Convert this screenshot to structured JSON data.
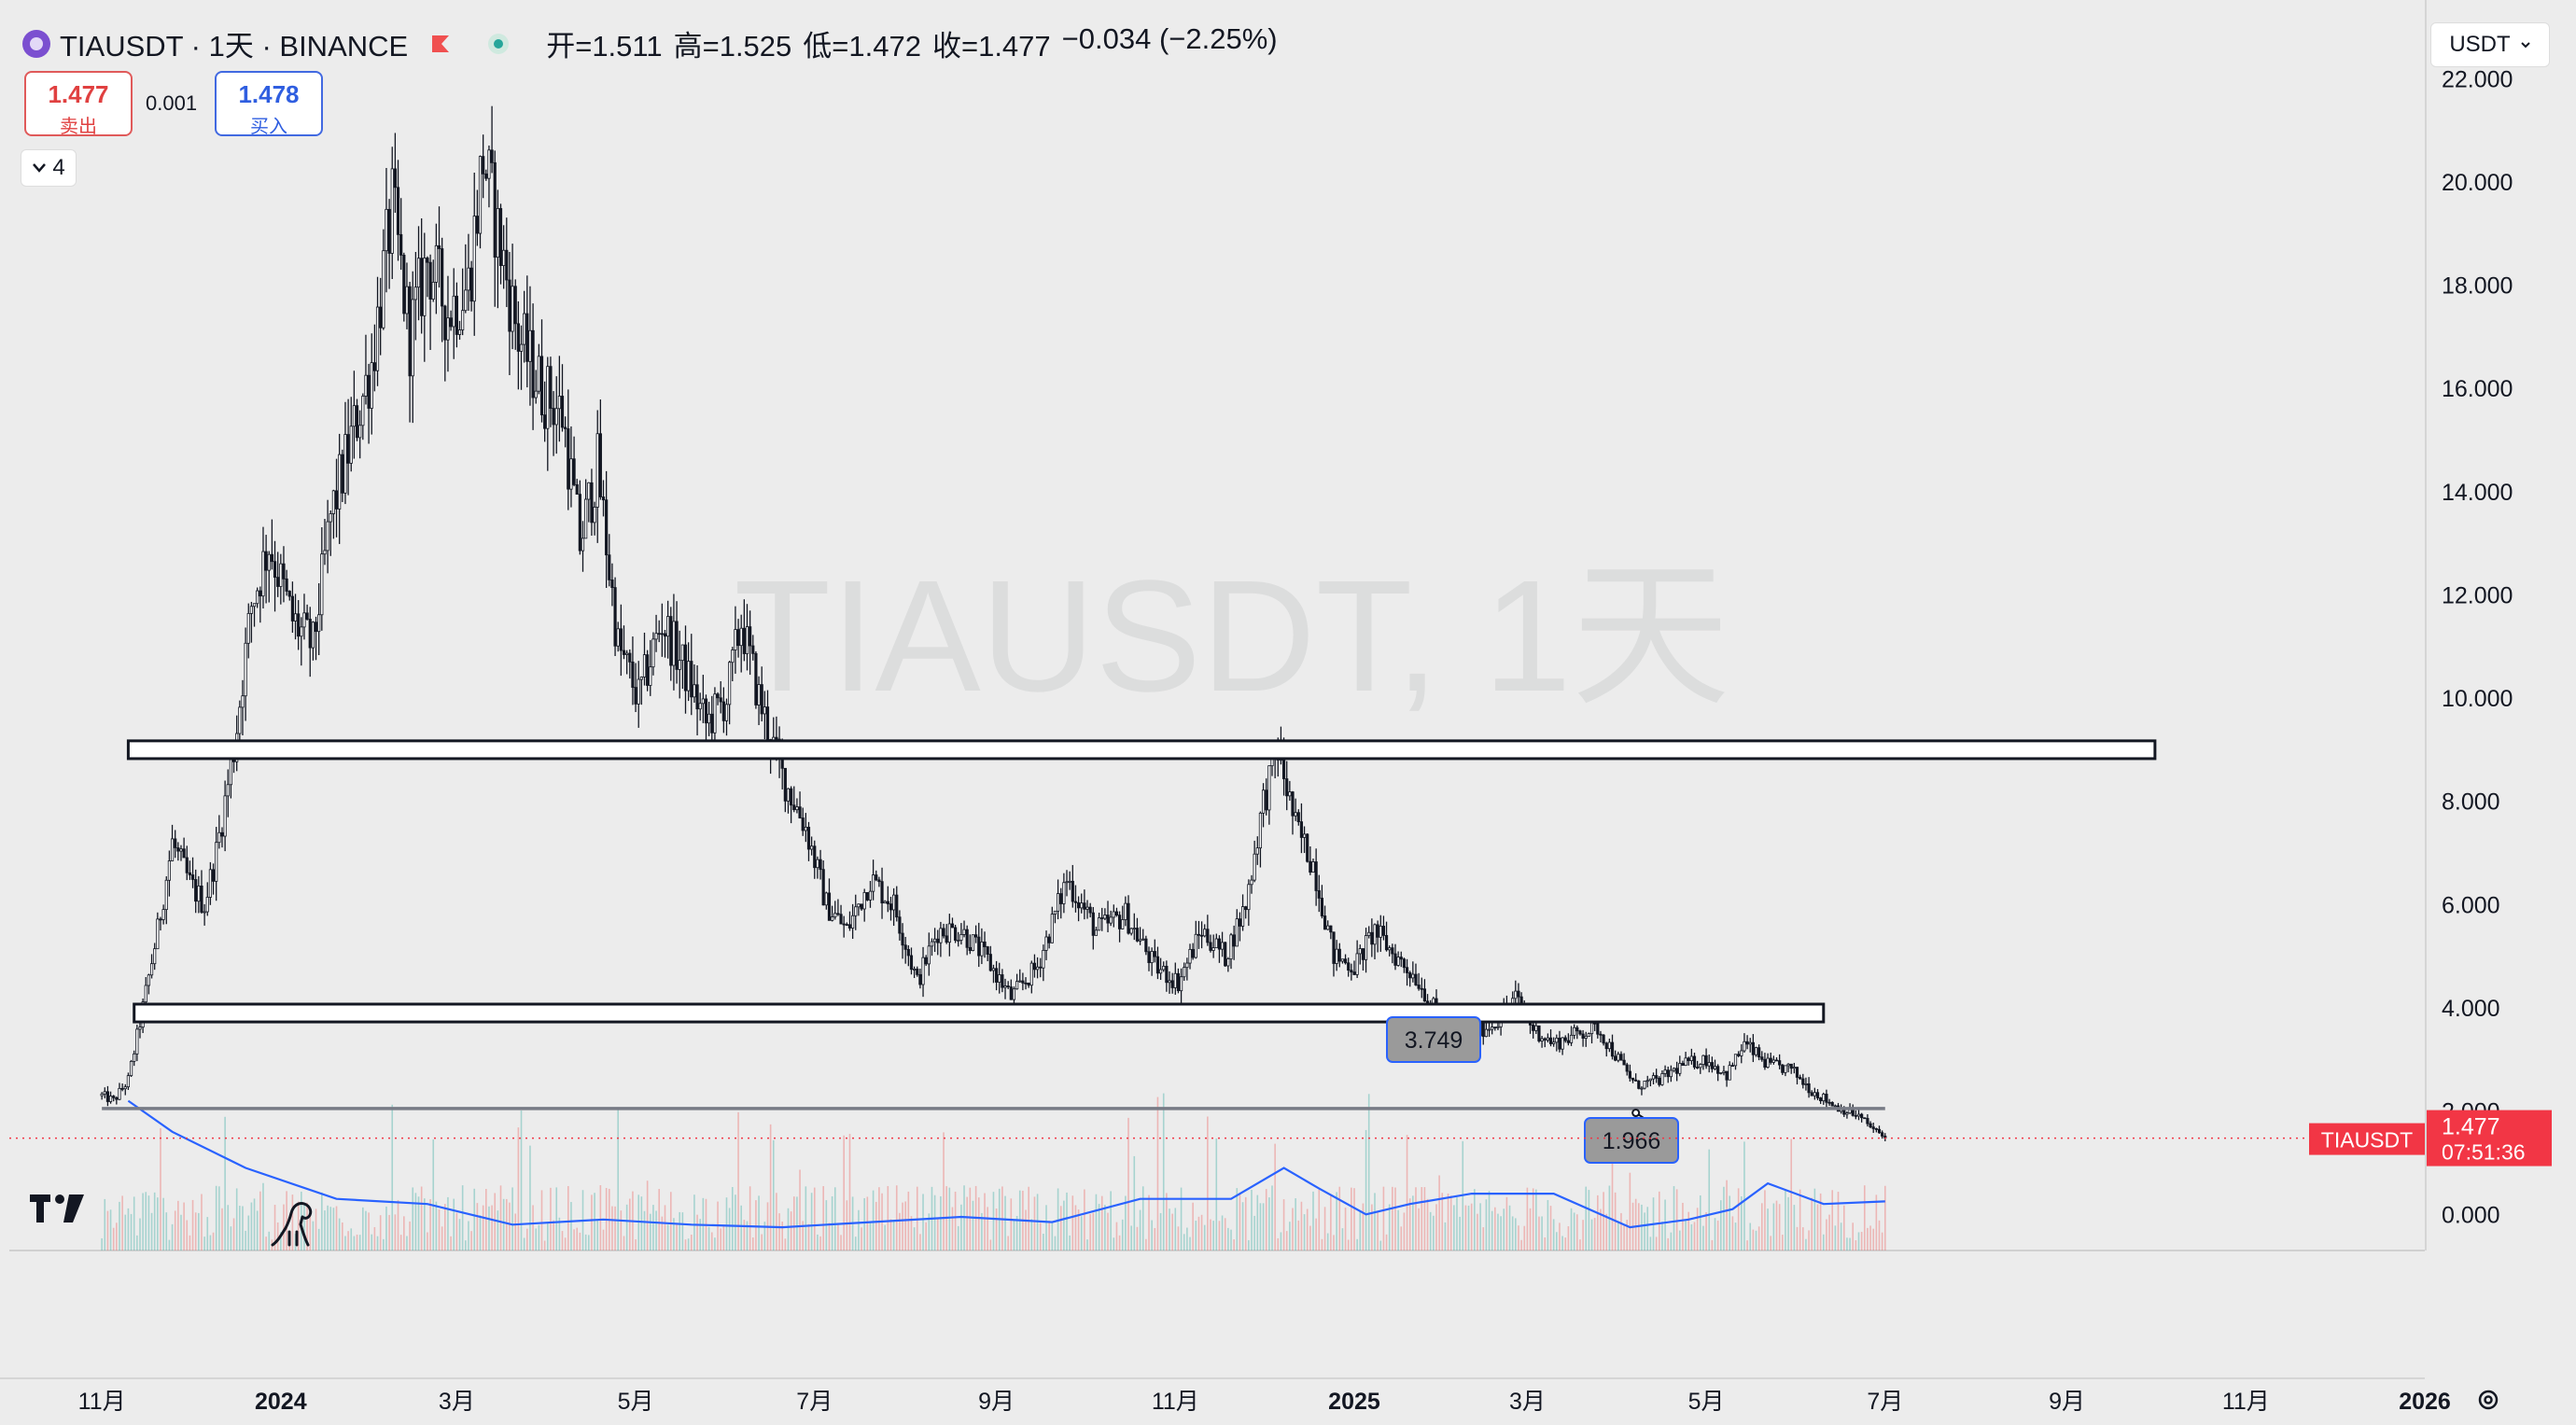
{
  "header": {
    "symbol": "TIAUSDT · 1天 · BINANCE",
    "open_label": "开=",
    "open_value": "1.511",
    "high_label": "高=",
    "high_value": "1.525",
    "low_label": "低=",
    "low_value": "1.472",
    "close_label": "收=",
    "close_value": "1.477",
    "change": "−0.034 (−2.25%)",
    "sell_price": "1.477",
    "sell_label": "卖出",
    "spread": "0.001",
    "buy_price": "1.478",
    "buy_label": "买入",
    "indicator_count": "4"
  },
  "currency": "USDT",
  "watermark": "TIAUSDT, 1天",
  "last_price_tag": {
    "symbol": "TIAUSDT",
    "price": "1.477",
    "countdown": "07:51:36"
  },
  "colors": {
    "last_price": "#f23645",
    "volume_ma": "#2962ff",
    "candles": "#131722",
    "accent_sell": "#e04040",
    "accent_buy": "#2f5ee0"
  },
  "icons": [
    "symbol-logo-icon",
    "flag-icon",
    "market-status-icon",
    "chevron-down-icon",
    "tradingview-logo-icon",
    "dino-icon",
    "settings-icon"
  ],
  "chart_data": {
    "type": "candlestick",
    "y_ticks": [
      "22.000",
      "20.000",
      "18.000",
      "16.000",
      "14.000",
      "12.000",
      "10.000",
      "8.000",
      "6.000",
      "4.000",
      "2.000",
      "0.000"
    ],
    "x_ticks": [
      "11月",
      "2024",
      "3月",
      "5月",
      "7月",
      "9月",
      "11月",
      "2025",
      "3月",
      "5月",
      "7月",
      "9月",
      "11月",
      "2026"
    ],
    "ylim": [
      -0.7,
      22.8
    ],
    "x_range": [
      "2023-10-10",
      "2026-01-01"
    ],
    "horizontal_levels": [
      {
        "start": "2023-11-10",
        "end": "2025-10-01",
        "low": 8.9,
        "high": 9.1
      },
      {
        "start": "2023-11-12",
        "end": "2025-06-10",
        "low": 3.8,
        "high": 4.0
      },
      {
        "start": "2023-11-01",
        "end": "2025-07-01",
        "value": 2.05
      }
    ],
    "annotations": [
      {
        "text": "3.749",
        "date": "2025-01-28",
        "price": 3.75
      },
      {
        "text": "1.966",
        "date": "2025-04-07",
        "price": 1.966
      }
    ],
    "price_path": [
      [
        "2023-11-01",
        2.3
      ],
      [
        "2023-11-05",
        2.2
      ],
      [
        "2023-11-10",
        2.6
      ],
      [
        "2023-11-15",
        4.0
      ],
      [
        "2023-11-20",
        5.5
      ],
      [
        "2023-11-25",
        7.2
      ],
      [
        "2023-12-01",
        6.4
      ],
      [
        "2023-12-06",
        6.0
      ],
      [
        "2023-12-10",
        7.0
      ],
      [
        "2023-12-16",
        9.0
      ],
      [
        "2023-12-22",
        11.8
      ],
      [
        "2023-12-28",
        13.0
      ],
      [
        "2024-01-05",
        11.5
      ],
      [
        "2024-01-12",
        11.0
      ],
      [
        "2024-01-18",
        13.5
      ],
      [
        "2024-01-25",
        15.0
      ],
      [
        "2024-02-01",
        16.5
      ],
      [
        "2024-02-08",
        19.5
      ],
      [
        "2024-02-14",
        17.0
      ],
      [
        "2024-02-20",
        18.5
      ],
      [
        "2024-02-27",
        17.5
      ],
      [
        "2024-03-05",
        18.0
      ],
      [
        "2024-03-10",
        20.5
      ],
      [
        "2024-03-15",
        19.0
      ],
      [
        "2024-03-22",
        17.0
      ],
      [
        "2024-03-30",
        16.0
      ],
      [
        "2024-04-06",
        15.5
      ],
      [
        "2024-04-12",
        13.0
      ],
      [
        "2024-04-18",
        14.5
      ],
      [
        "2024-04-25",
        11.0
      ],
      [
        "2024-05-02",
        10.0
      ],
      [
        "2024-05-10",
        11.5
      ],
      [
        "2024-05-18",
        10.5
      ],
      [
        "2024-05-25",
        9.5
      ],
      [
        "2024-06-01",
        10.0
      ],
      [
        "2024-06-06",
        11.5
      ],
      [
        "2024-06-12",
        10.0
      ],
      [
        "2024-06-20",
        8.5
      ],
      [
        "2024-06-28",
        7.5
      ],
      [
        "2024-07-05",
        6.0
      ],
      [
        "2024-07-12",
        5.5
      ],
      [
        "2024-07-20",
        6.5
      ],
      [
        "2024-07-28",
        6.0
      ],
      [
        "2024-08-05",
        4.5
      ],
      [
        "2024-08-12",
        5.5
      ],
      [
        "2024-08-20",
        5.5
      ],
      [
        "2024-08-28",
        5.0
      ],
      [
        "2024-09-06",
        4.2
      ],
      [
        "2024-09-15",
        4.8
      ],
      [
        "2024-09-25",
        6.5
      ],
      [
        "2024-10-05",
        5.5
      ],
      [
        "2024-10-15",
        5.8
      ],
      [
        "2024-10-25",
        4.8
      ],
      [
        "2024-11-02",
        4.5
      ],
      [
        "2024-11-10",
        5.5
      ],
      [
        "2024-11-18",
        5.0
      ],
      [
        "2024-11-25",
        6.0
      ],
      [
        "2024-12-01",
        8.0
      ],
      [
        "2024-12-06",
        9.0
      ],
      [
        "2024-12-12",
        7.5
      ],
      [
        "2024-12-18",
        6.8
      ],
      [
        "2024-12-25",
        5.0
      ],
      [
        "2025-01-01",
        4.8
      ],
      [
        "2025-01-08",
        5.5
      ],
      [
        "2025-01-15",
        5.0
      ],
      [
        "2025-01-22",
        4.6
      ],
      [
        "2025-01-28",
        4.0
      ],
      [
        "2025-02-03",
        3.2
      ],
      [
        "2025-02-10",
        3.5
      ],
      [
        "2025-02-18",
        3.7
      ],
      [
        "2025-02-25",
        4.2
      ],
      [
        "2025-03-03",
        3.6
      ],
      [
        "2025-03-10",
        3.3
      ],
      [
        "2025-03-18",
        3.5
      ],
      [
        "2025-03-25",
        3.6
      ],
      [
        "2025-04-01",
        3.0
      ],
      [
        "2025-04-07",
        2.5
      ],
      [
        "2025-04-15",
        2.6
      ],
      [
        "2025-04-23",
        2.9
      ],
      [
        "2025-05-01",
        3.0
      ],
      [
        "2025-05-08",
        2.7
      ],
      [
        "2025-05-14",
        3.3
      ],
      [
        "2025-05-22",
        2.9
      ],
      [
        "2025-05-30",
        2.8
      ],
      [
        "2025-06-06",
        2.4
      ],
      [
        "2025-06-14",
        2.1
      ],
      [
        "2025-06-22",
        1.9
      ],
      [
        "2025-06-28",
        1.6
      ],
      [
        "2025-07-01",
        1.48
      ]
    ],
    "volume_ma_path": [
      [
        "2023-11-10",
        2.2
      ],
      [
        "2023-11-25",
        1.6
      ],
      [
        "2023-12-20",
        0.9
      ],
      [
        "2024-01-20",
        0.3
      ],
      [
        "2024-02-20",
        0.2
      ],
      [
        "2024-03-20",
        -0.2
      ],
      [
        "2024-04-20",
        -0.1
      ],
      [
        "2024-05-20",
        -0.2
      ],
      [
        "2024-06-20",
        -0.25
      ],
      [
        "2024-07-20",
        -0.15
      ],
      [
        "2024-08-20",
        -0.05
      ],
      [
        "2024-09-20",
        -0.15
      ],
      [
        "2024-10-20",
        0.3
      ],
      [
        "2024-11-20",
        0.3
      ],
      [
        "2024-12-08",
        0.9
      ],
      [
        "2024-12-20",
        0.5
      ],
      [
        "2025-01-05",
        0.0
      ],
      [
        "2025-01-20",
        0.2
      ],
      [
        "2025-02-10",
        0.4
      ],
      [
        "2025-03-10",
        0.4
      ],
      [
        "2025-04-05",
        -0.25
      ],
      [
        "2025-04-25",
        -0.1
      ],
      [
        "2025-05-10",
        0.1
      ],
      [
        "2025-05-22",
        0.6
      ],
      [
        "2025-06-10",
        0.2
      ],
      [
        "2025-07-01",
        0.25
      ]
    ]
  }
}
